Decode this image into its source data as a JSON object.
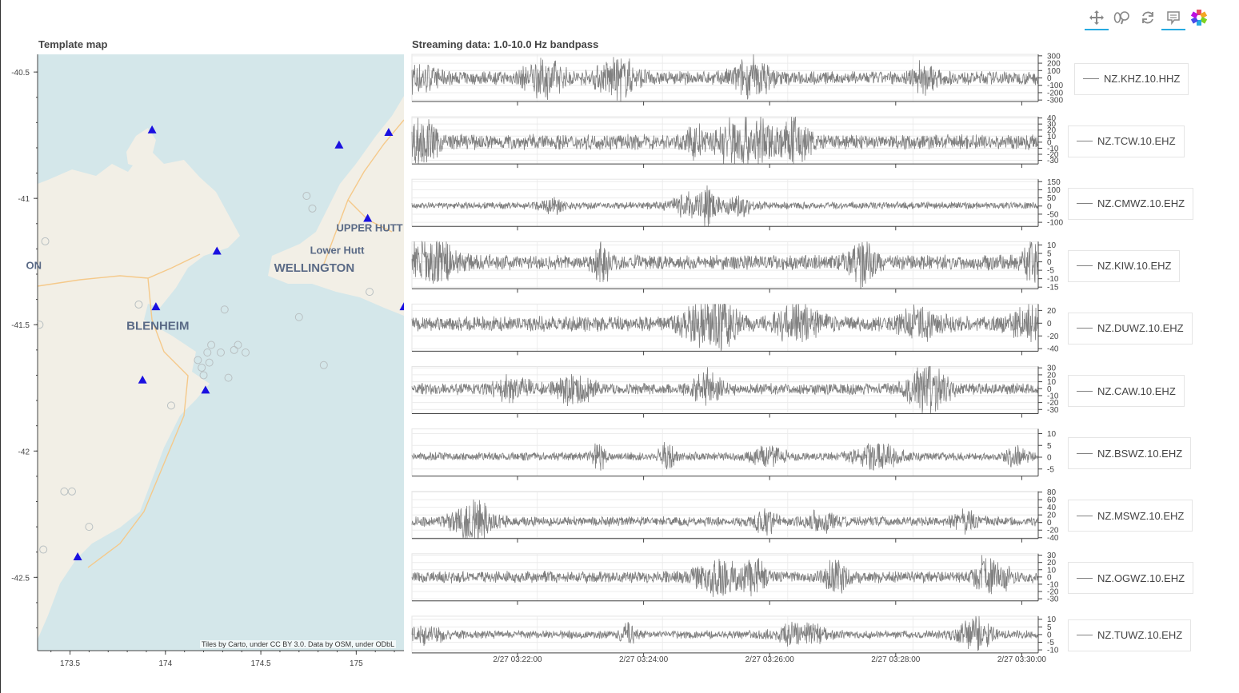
{
  "toolbar": {
    "tools": [
      {
        "name": "pan-tool",
        "icon": "move-icon",
        "active": true
      },
      {
        "name": "wheel-zoom-tool",
        "icon": "wheel-zoom-icon",
        "active": false
      },
      {
        "name": "reset-tool",
        "icon": "reset-icon",
        "active": false
      },
      {
        "name": "hover-tool",
        "icon": "hover-icon",
        "active": true
      },
      {
        "name": "bokeh-logo",
        "icon": "bokeh-logo-icon",
        "active": false
      }
    ],
    "accent": "#26aae1"
  },
  "map": {
    "title": "Template map",
    "attribution": "Tiles by Carto, under CC BY 3.0. Data by OSM, under ODbL",
    "labels": [
      {
        "text": "WELLINGTON",
        "lon": 174.78,
        "lat": -41.29
      },
      {
        "text": "Lower Hutt",
        "lon": 174.9,
        "lat": -41.22
      },
      {
        "text": "UPPER HUTT",
        "lon": 175.07,
        "lat": -41.13
      },
      {
        "text": "BLENHEIM",
        "lon": 173.96,
        "lat": -41.52
      },
      {
        "text": "ON",
        "lon": 173.31,
        "lat": -41.28
      }
    ],
    "colors": {
      "sea": "#d4e7ea",
      "land": "#f2efe6",
      "station": "#1a10e0",
      "event": "#b9c0c2"
    }
  },
  "chart_data": [
    {
      "type": "scatter",
      "title": "Template map",
      "xlim": [
        173.33,
        175.25
      ],
      "ylim": [
        -42.79,
        -40.43
      ],
      "xticks": [
        173.5,
        174,
        174.5,
        175
      ],
      "yticks": [
        -40.5,
        -41,
        -41.5,
        -42,
        -42.5
      ],
      "xtick_labels": [
        "173.5",
        "174",
        "174.5",
        "175"
      ],
      "ytick_labels": [
        "-40.5",
        "-41",
        "-41.5",
        "-42",
        "-42.5"
      ],
      "series": [
        {
          "marker": "triangle",
          "points": [
            {
              "x": 173.93,
              "y": -40.73
            },
            {
              "x": 174.91,
              "y": -40.79
            },
            {
              "x": 175.17,
              "y": -40.74
            },
            {
              "x": 175.06,
              "y": -41.08
            },
            {
              "x": 174.27,
              "y": -41.21
            },
            {
              "x": 173.95,
              "y": -41.43
            },
            {
              "x": 175.25,
              "y": -41.43
            },
            {
              "x": 173.88,
              "y": -41.72
            },
            {
              "x": 174.21,
              "y": -41.76
            },
            {
              "x": 173.54,
              "y": -42.42
            }
          ]
        },
        {
          "marker": "circle",
          "points": [
            {
              "x": 174.74,
              "y": -40.99
            },
            {
              "x": 174.77,
              "y": -41.04
            },
            {
              "x": 173.37,
              "y": -41.17
            },
            {
              "x": 173.86,
              "y": -41.42
            },
            {
              "x": 174.31,
              "y": -41.44
            },
            {
              "x": 174.7,
              "y": -41.47
            },
            {
              "x": 174.24,
              "y": -41.58
            },
            {
              "x": 174.22,
              "y": -41.61
            },
            {
              "x": 174.36,
              "y": -41.6
            },
            {
              "x": 174.38,
              "y": -41.58
            },
            {
              "x": 174.42,
              "y": -41.61
            },
            {
              "x": 174.29,
              "y": -41.61
            },
            {
              "x": 174.17,
              "y": -41.64
            },
            {
              "x": 174.19,
              "y": -41.67
            },
            {
              "x": 174.23,
              "y": -41.65
            },
            {
              "x": 174.2,
              "y": -41.7
            },
            {
              "x": 174.33,
              "y": -41.71
            },
            {
              "x": 174.83,
              "y": -41.66
            },
            {
              "x": 175.07,
              "y": -41.37
            },
            {
              "x": 174.03,
              "y": -41.82
            },
            {
              "x": 173.47,
              "y": -42.16
            },
            {
              "x": 173.51,
              "y": -42.16
            },
            {
              "x": 173.6,
              "y": -42.3
            },
            {
              "x": 173.36,
              "y": -42.39
            },
            {
              "x": 173.34,
              "y": -41.5
            }
          ]
        }
      ]
    },
    {
      "type": "line",
      "title": "Streaming data: 1.0-10.0 Hz bandpass",
      "x_axis": {
        "ticks": [
          "2/27 03:22:00",
          "2/27 03:24:00",
          "2/27 03:26:00",
          "2/27 03:28:00",
          "2/27 03:30:00"
        ],
        "range": [
          "2/27 03:20:19",
          "2/27 03:30:30"
        ]
      },
      "line_color": "#808080",
      "series": [
        {
          "name": "NZ.KHZ.10.HHZ",
          "ylim": [
            -320,
            320
          ],
          "yticks": [
            300,
            200,
            100,
            0,
            -100,
            -200,
            -300
          ],
          "amplitude": 100
        },
        {
          "name": "NZ.TCW.10.EHZ",
          "ylim": [
            -36,
            42
          ],
          "yticks": [
            40,
            30,
            20,
            10,
            0,
            -10,
            -20,
            -30
          ],
          "amplitude": 14
        },
        {
          "name": "NZ.CMWZ.10.EHZ",
          "ylim": [
            -125,
            165
          ],
          "yticks": [
            150,
            100,
            50,
            0,
            -50,
            -100
          ],
          "amplitude": 24
        },
        {
          "name": "NZ.KIW.10.EHZ",
          "ylim": [
            -16,
            12
          ],
          "yticks": [
            10,
            5,
            0,
            -5,
            -10,
            -15
          ],
          "amplitude": 5
        },
        {
          "name": "NZ.DUWZ.10.EHZ",
          "ylim": [
            -44,
            30
          ],
          "yticks": [
            20,
            0,
            -20,
            -40
          ],
          "amplitude": 13
        },
        {
          "name": "NZ.CAW.10.EHZ",
          "ylim": [
            -36,
            32
          ],
          "yticks": [
            30,
            20,
            10,
            0,
            -10,
            -20,
            -30
          ],
          "amplitude": 9
        },
        {
          "name": "NZ.BSWZ.10.EHZ",
          "ylim": [
            -8,
            12
          ],
          "yticks": [
            10,
            5,
            0,
            -5
          ],
          "amplitude": 2
        },
        {
          "name": "NZ.MSWZ.10.EHZ",
          "ylim": [
            -42,
            82
          ],
          "yticks": [
            80,
            60,
            40,
            20,
            0,
            -20,
            -40
          ],
          "amplitude": 14
        },
        {
          "name": "NZ.OGWZ.10.EHZ",
          "ylim": [
            -33,
            32
          ],
          "yticks": [
            30,
            20,
            10,
            0,
            -10,
            -20,
            -30
          ],
          "amplitude": 9
        },
        {
          "name": "NZ.TUWZ.10.EHZ",
          "ylim": [
            -12,
            12
          ],
          "yticks": [
            10,
            5,
            0,
            -5,
            -10
          ],
          "amplitude": 3
        }
      ]
    }
  ]
}
